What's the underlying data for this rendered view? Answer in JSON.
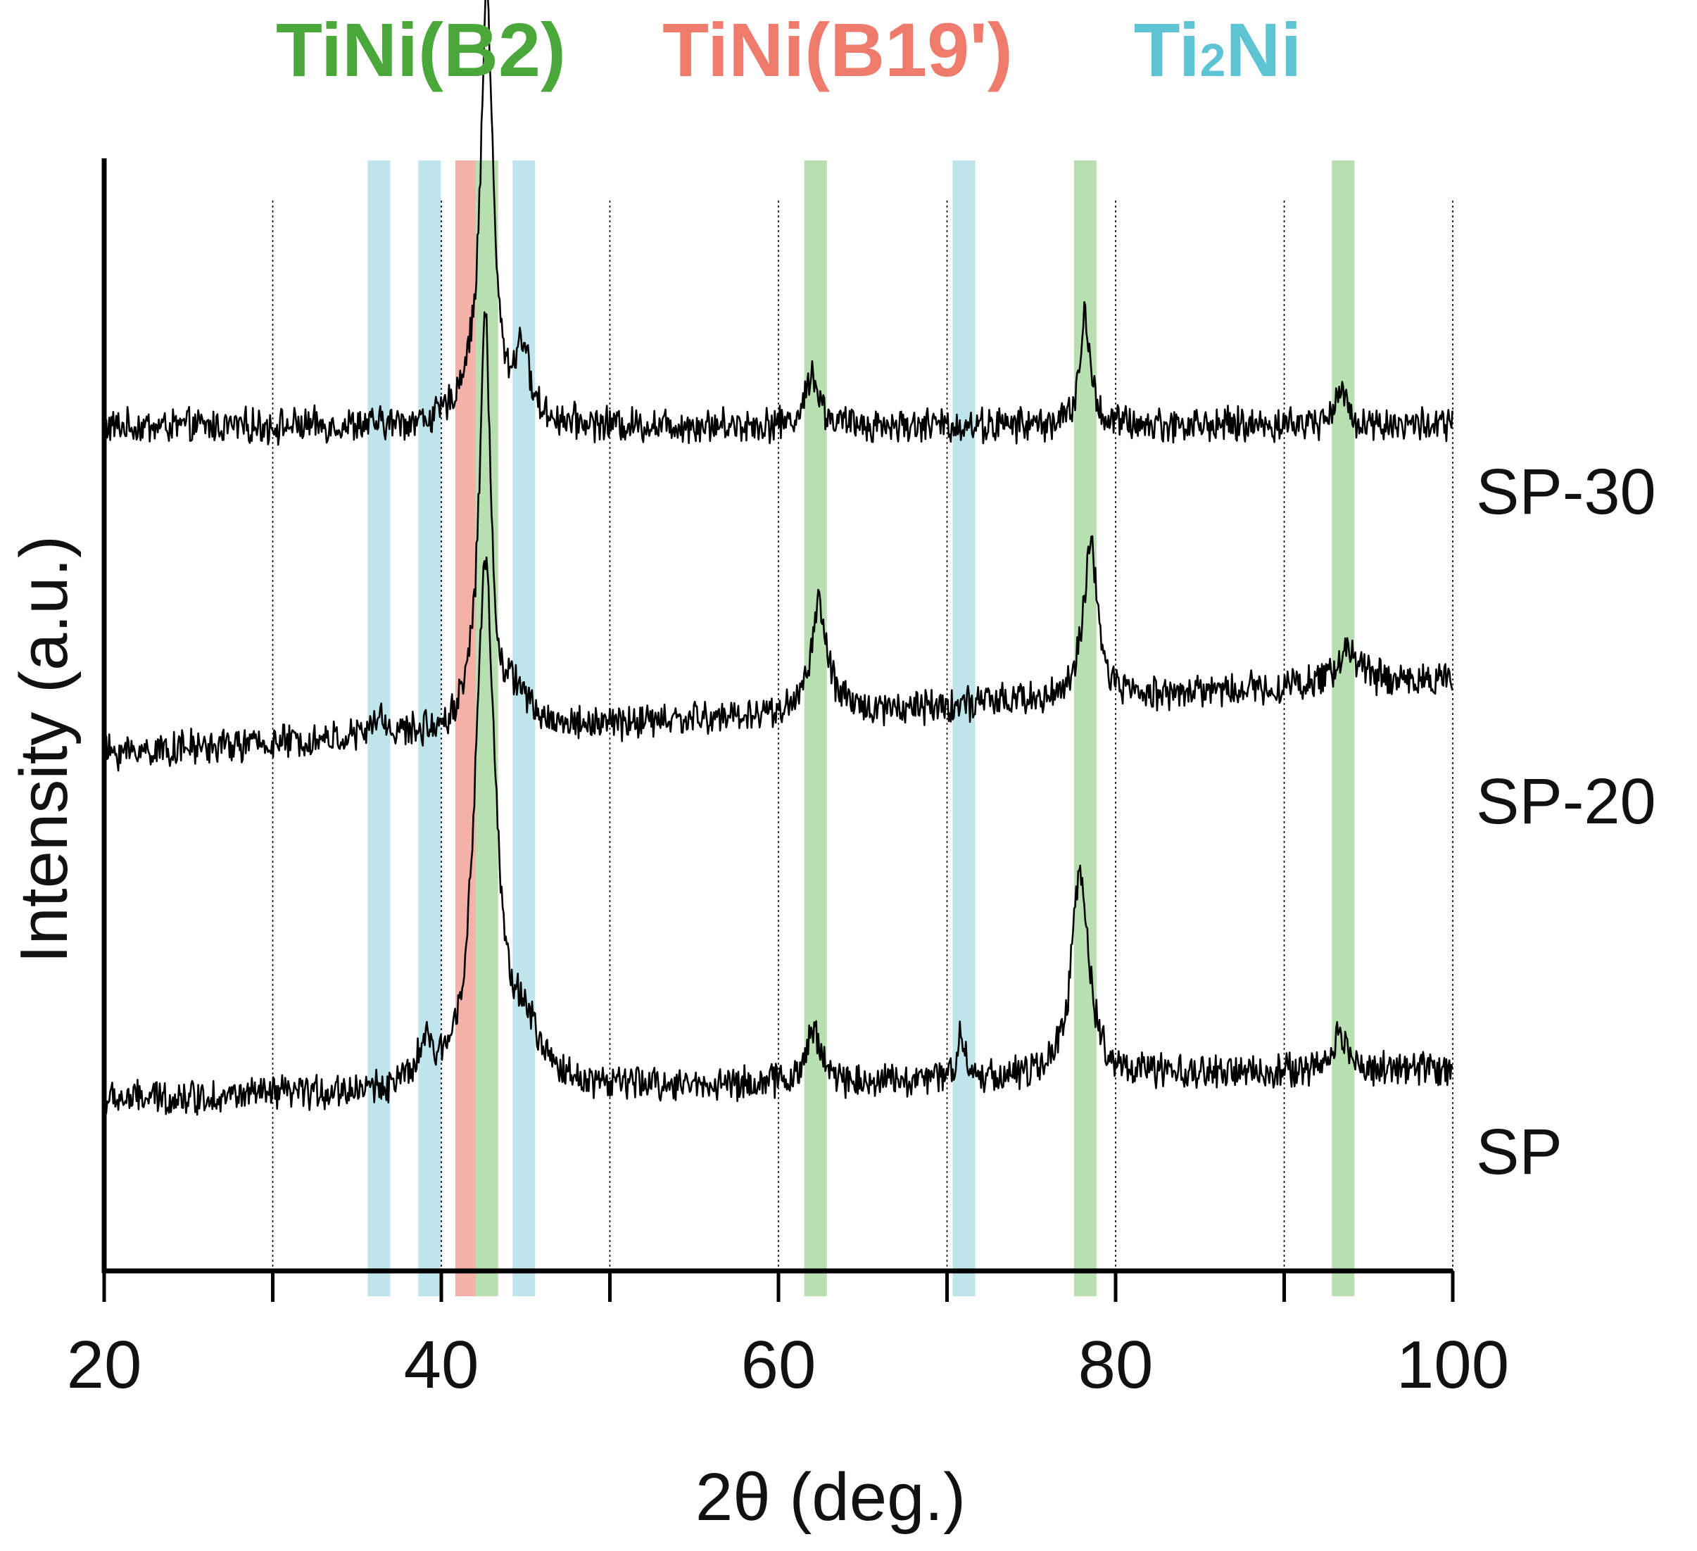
{
  "chart_data": {
    "type": "line",
    "title": "",
    "xlabel": "2θ (deg.)",
    "ylabel": "Intensity (a.u.)",
    "xlim": [
      20,
      100
    ],
    "xticks": [
      20,
      30,
      40,
      50,
      60,
      70,
      80,
      90,
      100
    ],
    "xtick_labels": [
      "20",
      "40",
      "60",
      "80",
      "100"
    ],
    "grid": "vertical dotted lines at 30, 40, 50, 60, 70, 80, 90, 100",
    "legend": {
      "placement": "top",
      "entries": [
        {
          "name": "TiNi(B2)",
          "color": "#4aa83a"
        },
        {
          "name": "TiNi(B19')",
          "color": "#ef7b6c"
        },
        {
          "name": "Ti",
          "sub": "2",
          "tail": "Ni",
          "color": "#5ec4d4"
        }
      ]
    },
    "reference_lines": [
      {
        "phase": "Ti2Ni",
        "x": 36.3,
        "color": "#bfe5ec"
      },
      {
        "phase": "Ti2Ni",
        "x": 39.3,
        "color": "#bfe5ec"
      },
      {
        "phase": "TiNi(B19')",
        "x": 41.5,
        "color": "#f3b1a8"
      },
      {
        "phase": "TiNi(B2)",
        "x": 42.7,
        "color": "#b8dfb0"
      },
      {
        "phase": "Ti2Ni",
        "x": 44.9,
        "color": "#bfe5ec"
      },
      {
        "phase": "TiNi(B2)",
        "x": 62.2,
        "color": "#b8dfb0"
      },
      {
        "phase": "Ti2Ni",
        "x": 71.0,
        "color": "#bfe5ec"
      },
      {
        "phase": "TiNi(B2)",
        "x": 78.2,
        "color": "#b8dfb0"
      },
      {
        "phase": "TiNi(B2)",
        "x": 93.5,
        "color": "#b8dfb0"
      }
    ],
    "series": [
      {
        "name": "SP-30",
        "baseline": [
          0.36,
          0.37
        ],
        "peaks": [
          {
            "x": 42.7,
            "h": 2.35,
            "w": 0.55
          },
          {
            "x": 41.5,
            "h": 0.12,
            "w": 0.9
          },
          {
            "x": 44.8,
            "h": 0.4,
            "w": 0.6
          },
          {
            "x": 62.0,
            "h": 0.3,
            "w": 0.55
          },
          {
            "x": 78.2,
            "h": 0.6,
            "w": 0.45
          },
          {
            "x": 93.3,
            "h": 0.18,
            "w": 0.6
          }
        ]
      },
      {
        "name": "SP-20",
        "baseline": [
          0.27,
          0.68
        ],
        "peaks": [
          {
            "x": 42.6,
            "h": 2.2,
            "w": 0.5
          },
          {
            "x": 41.8,
            "h": 0.15,
            "w": 0.8
          },
          {
            "x": 36.3,
            "h": 0.1,
            "w": 0.6
          },
          {
            "x": 44.5,
            "h": 0.18,
            "w": 0.9
          },
          {
            "x": 62.4,
            "h": 0.6,
            "w": 0.7
          },
          {
            "x": 78.5,
            "h": 0.85,
            "w": 0.6
          },
          {
            "x": 93.8,
            "h": 0.2,
            "w": 0.9
          }
        ]
      },
      {
        "name": "SP",
        "baseline": [
          0.45,
          0.62
        ],
        "peaks": [
          {
            "x": 42.6,
            "h": 2.85,
            "w": 0.9
          },
          {
            "x": 39.0,
            "h": 0.2,
            "w": 0.5
          },
          {
            "x": 45.0,
            "h": 0.25,
            "w": 1.2
          },
          {
            "x": 62.1,
            "h": 0.3,
            "w": 0.6
          },
          {
            "x": 70.8,
            "h": 0.25,
            "w": 0.35
          },
          {
            "x": 77.9,
            "h": 1.15,
            "w": 0.75
          },
          {
            "x": 93.3,
            "h": 0.2,
            "w": 0.7
          }
        ]
      }
    ]
  }
}
